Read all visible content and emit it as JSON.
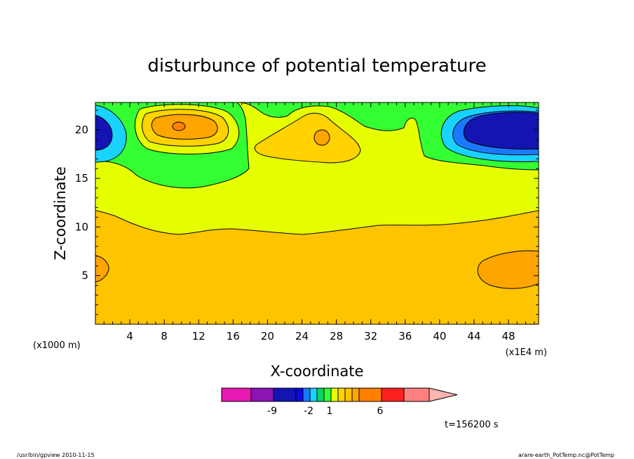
{
  "chart_data": {
    "type": "heatmap",
    "title": "disturbunce of potential temperature",
    "xlabel": "X-coordinate",
    "ylabel": "Z-coordinate",
    "x_unit_note": "(x1E4 m)",
    "y_unit_note": "(x1000 m)",
    "xlim": [
      0,
      51.5
    ],
    "ylim": [
      0,
      22.8
    ],
    "x_ticks": [
      4,
      8,
      12,
      16,
      20,
      24,
      28,
      32,
      36,
      40,
      44,
      48
    ],
    "y_ticks": [
      5,
      10,
      15,
      20
    ],
    "x_tick_labels": [
      "4",
      "8",
      "12",
      "16",
      "20",
      "24",
      "28",
      "32",
      "36",
      "40",
      "44",
      "48"
    ],
    "y_tick_labels": [
      "5",
      "10",
      "15",
      "20"
    ],
    "time_label": "t=156200 s",
    "colorbar": {
      "colors": [
        "#e619b3",
        "#8c14b3",
        "#1414b3",
        "#0a0ae6",
        "#1a7aff",
        "#19d2ff",
        "#0ad264",
        "#33ff33",
        "#e6ff00",
        "#ffd200",
        "#ffc400",
        "#ffa500",
        "#ff8000",
        "#ff2020",
        "#ff8080",
        "#ffb4b4"
      ],
      "tick_labels": [
        "-9",
        "-2",
        "1",
        "6"
      ]
    },
    "fields": {
      "background_level": "yellow",
      "features": [
        {
          "name": "warm upper-left",
          "x": 10,
          "z": 20.5,
          "peak": 3
        },
        {
          "name": "warm upper-center",
          "x": 26,
          "z": 19.3,
          "peak": 2
        },
        {
          "name": "cold upper-right",
          "x": 47,
          "z": 20,
          "peak": -3
        },
        {
          "name": "cold upper-left edge",
          "x": 0,
          "z": 19.8,
          "peak": -2
        },
        {
          "name": "warm lower-right",
          "x": 47.5,
          "z": 5.6,
          "peak": 2
        },
        {
          "name": "warm lower-left edge",
          "x": 0,
          "z": 5.8,
          "peak": 2
        }
      ]
    }
  },
  "footer": {
    "left": "/usr/bin/gpview  2010-11-15",
    "right": "arare-earth_PotTemp.nc@PotTemp"
  }
}
